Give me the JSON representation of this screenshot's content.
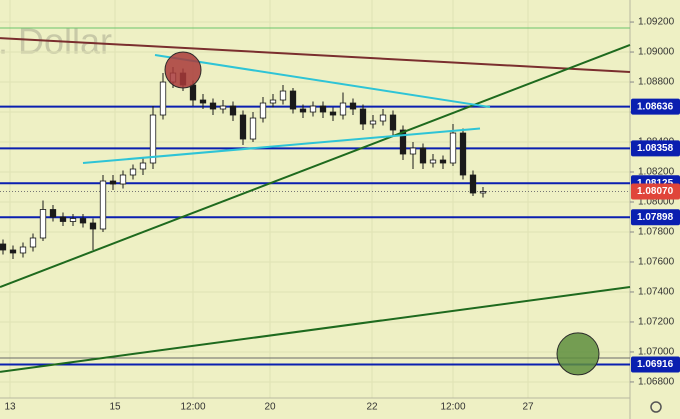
{
  "chart_data": {
    "type": "candlestick",
    "watermark": "s. Dollar",
    "background": "#eef0c4",
    "up_color": "#ffffff",
    "down_color": "#1a1a1a",
    "grid": true,
    "xlim": [
      -0.3,
      62.7
    ],
    "ylim": [
      1.06693,
      1.09347
    ],
    "xticks": [
      {
        "value": 0.7,
        "label": "13"
      },
      {
        "value": 11.2,
        "label": "15"
      },
      {
        "value": 19,
        "label": "12:00"
      },
      {
        "value": 26.7,
        "label": "20"
      },
      {
        "value": 36.9,
        "label": "22"
      },
      {
        "value": 45,
        "label": "12:00"
      },
      {
        "value": 52.5,
        "label": "27"
      }
    ],
    "yticks": [
      {
        "value": 1.092,
        "label": "1.09200"
      },
      {
        "value": 1.09,
        "label": "1.09000"
      },
      {
        "value": 1.088,
        "label": "1.08800"
      },
      {
        "value": 1.086,
        "label": "1.08600"
      },
      {
        "value": 1.084,
        "label": "1.08400"
      },
      {
        "value": 1.082,
        "label": "1.08200"
      },
      {
        "value": 1.08,
        "label": "1.08000"
      },
      {
        "value": 1.078,
        "label": "1.07800"
      },
      {
        "value": 1.076,
        "label": "1.07600"
      },
      {
        "value": 1.074,
        "label": "1.07400"
      },
      {
        "value": 1.072,
        "label": "1.07200"
      },
      {
        "value": 1.07,
        "label": "1.07000"
      },
      {
        "value": 1.068,
        "label": "1.06800"
      }
    ],
    "open": [
      1.0772,
      1.0768,
      1.0766,
      1.077,
      1.0776,
      1.0795,
      1.079,
      1.0787,
      1.0789,
      1.0786,
      1.0782,
      1.0814,
      1.0812,
      1.0818,
      1.0822,
      1.0826,
      1.0858,
      1.088,
      1.0886,
      1.0878,
      1.0868,
      1.0866,
      1.0862,
      1.0864,
      1.0858,
      1.0842,
      1.0856,
      1.0866,
      1.0868,
      1.0874,
      1.0862,
      1.086,
      1.0864,
      1.086,
      1.0858,
      1.0866,
      1.0862,
      1.0852,
      1.0854,
      1.0858,
      1.0848,
      1.0832,
      1.0836,
      1.0826,
      1.0828,
      1.0826,
      1.0846,
      1.0818,
      1.0806
    ],
    "high": [
      1.0775,
      1.0771,
      1.0773,
      1.0779,
      1.0801,
      1.0798,
      1.0793,
      1.0792,
      1.0792,
      1.0789,
      1.0818,
      1.0818,
      1.0821,
      1.0825,
      1.083,
      1.0864,
      1.0886,
      1.089,
      1.0889,
      1.0881,
      1.0872,
      1.0869,
      1.0868,
      1.0867,
      1.0861,
      1.086,
      1.087,
      1.0872,
      1.0878,
      1.0876,
      1.0865,
      1.0867,
      1.0867,
      1.0863,
      1.0873,
      1.0869,
      1.0865,
      1.0858,
      1.0862,
      1.0861,
      1.0851,
      1.084,
      1.0839,
      1.0832,
      1.0831,
      1.0852,
      1.0849,
      1.0821,
      1.081
    ],
    "low": [
      1.0765,
      1.0762,
      1.0763,
      1.0767,
      1.0774,
      1.0787,
      1.0784,
      1.0784,
      1.0783,
      1.0768,
      1.078,
      1.0808,
      1.0809,
      1.0815,
      1.0818,
      1.0822,
      1.0855,
      1.0876,
      1.0874,
      1.0864,
      1.0862,
      1.0858,
      1.0859,
      1.0854,
      1.0838,
      1.084,
      1.0853,
      1.0863,
      1.0865,
      1.0859,
      1.0856,
      1.0857,
      1.0856,
      1.0854,
      1.0855,
      1.0858,
      1.0848,
      1.0849,
      1.0851,
      1.0844,
      1.0828,
      1.0822,
      1.0822,
      1.0823,
      1.0822,
      1.0824,
      1.0815,
      1.0804,
      1.0803
    ],
    "close": [
      1.0768,
      1.0766,
      1.077,
      1.0776,
      1.0795,
      1.079,
      1.0787,
      1.0789,
      1.0786,
      1.0782,
      1.0814,
      1.0812,
      1.0818,
      1.0822,
      1.0826,
      1.0858,
      1.088,
      1.0886,
      1.0878,
      1.0868,
      1.0866,
      1.0862,
      1.0864,
      1.0858,
      1.0842,
      1.0856,
      1.0866,
      1.0868,
      1.0874,
      1.0862,
      1.086,
      1.0864,
      1.086,
      1.0858,
      1.0866,
      1.0862,
      1.0852,
      1.0854,
      1.0858,
      1.0848,
      1.0832,
      1.0836,
      1.0826,
      1.0828,
      1.0826,
      1.0846,
      1.0818,
      1.0806,
      1.0807
    ],
    "levels": [
      {
        "value": 1.08636,
        "label": "1.08636",
        "color": "#0a1fb0"
      },
      {
        "value": 1.08358,
        "label": "1.08358",
        "color": "#0a1fb0"
      },
      {
        "value": 1.08125,
        "label": "1.08125",
        "color": "#0a1fb0"
      },
      {
        "value": 1.07898,
        "label": "1.07898",
        "color": "#0a1fb0"
      },
      {
        "value": 1.06916,
        "label": "1.06916",
        "color": "#0a1fb0"
      }
    ],
    "last_price": {
      "value": 1.0807,
      "label": "1.08070",
      "color": "#e0453a"
    },
    "guide_lines": [
      {
        "value": 1.0916,
        "color": "#6cc36c"
      },
      {
        "value": 1.0696,
        "color": "#6a6a6a"
      }
    ],
    "trend_lines": [
      {
        "x": [
          -0.3,
          62.7
        ],
        "y": [
          1.09093,
          1.08867
        ],
        "color": "#7a2e2e"
      },
      {
        "x": [
          -0.3,
          62.7
        ],
        "y": [
          1.07433,
          1.09047
        ],
        "color": "#1e6a1e"
      },
      {
        "x": [
          -0.3,
          62.7
        ],
        "y": [
          1.06867,
          1.07433
        ],
        "color": "#1e6a1e"
      },
      {
        "x": [
          15.2,
          48.7
        ],
        "y": [
          1.0898,
          1.08633
        ],
        "color": "#2ec4d6"
      },
      {
        "x": [
          8,
          47.7
        ],
        "y": [
          1.0826,
          1.0849
        ],
        "color": "#2ec4d6"
      }
    ],
    "circles": [
      {
        "x": 18,
        "y": 1.0888,
        "color": "#a83a3a"
      },
      {
        "x": 57.5,
        "y": 1.06987,
        "color": "#5e8e3e"
      }
    ]
  }
}
